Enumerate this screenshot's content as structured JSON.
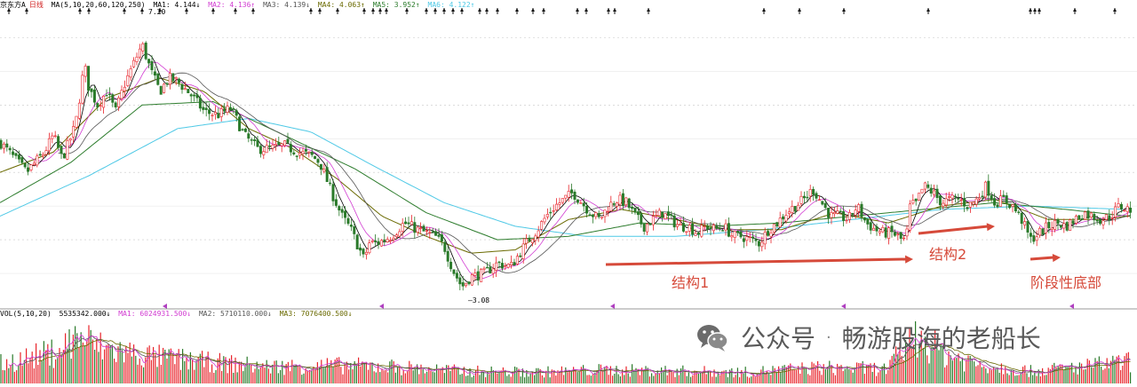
{
  "header": {
    "stock_name": "京东方A",
    "period": "日线",
    "ma_label": "MA(5,10,20,60,120,250)",
    "ma_items": [
      {
        "text": "MA1: 4.144↓",
        "color": "#000000"
      },
      {
        "text": "MA2: 4.136↑",
        "color": "#d23cd2"
      },
      {
        "text": "MA3: 4.139↓",
        "color": "#555555"
      },
      {
        "text": "MA4: 4.063↑",
        "color": "#6a6a00"
      },
      {
        "text": "MA5: 3.952↑",
        "color": "#2e7d2e"
      },
      {
        "text": "MA6: 4.122↑",
        "color": "#4fc9e6"
      }
    ]
  },
  "volume_header": {
    "label": "VOL(5,10,20)",
    "items": [
      {
        "text": "5535342.000↓",
        "color": "#000000"
      },
      {
        "text": "MA1: 6024931.500↓",
        "color": "#d23cd2"
      },
      {
        "text": "MA2: 5710110.000↓",
        "color": "#555555"
      },
      {
        "text": "MA3: 7076400.500↓",
        "color": "#6a6a00"
      }
    ]
  },
  "price_labels": {
    "high": "7.20",
    "low": "3.08"
  },
  "annotations": {
    "structure1": "结构1",
    "structure2": "结构2",
    "stage_bottom": "阶段性底部"
  },
  "watermark": {
    "channel": "公众号",
    "dot": "·",
    "author": "畅游股海的老船长"
  },
  "colors": {
    "up": "#e8232a",
    "down": "#2a7a2a",
    "ma5": "#000000",
    "ma10": "#d23cd2",
    "ma20": "#555555",
    "ma60": "#6a6a00",
    "ma120": "#2e7d2e",
    "ma250": "#4fc9e6",
    "annotation": "#d64a3a",
    "grid": "#c8c8c8"
  },
  "chart_data": {
    "type": "candlestick",
    "ylim": [
      3.0,
      7.4
    ],
    "series_outline": [
      {
        "name": "close",
        "x": [
          0,
          20,
          30,
          50,
          60,
          70,
          85,
          95,
          100,
          110,
          120,
          130,
          140,
          150,
          160,
          170,
          180,
          190,
          200,
          215,
          230,
          245,
          260,
          275,
          290,
          305,
          320,
          335,
          350,
          360,
          375,
          385,
          395,
          405,
          410,
          415,
          425,
          440,
          455,
          470,
          490,
          500,
          510,
          520,
          530,
          545,
          560,
          575,
          585,
          595,
          605,
          615,
          625,
          635,
          645,
          655,
          665,
          675,
          685,
          695,
          705,
          715,
          725,
          735,
          745,
          755,
          765,
          775,
          785,
          795,
          805,
          815,
          825,
          835,
          845,
          855,
          865,
          875,
          885,
          895,
          905,
          915,
          925,
          935,
          945,
          955,
          965,
          975,
          985,
          995,
          1005,
          1015,
          1020,
          1025,
          1030,
          1040,
          1050,
          1060,
          1070,
          1080,
          1090,
          1100,
          1110,
          1120,
          1130,
          1140,
          1150,
          1155,
          1160,
          1170,
          1180,
          1190,
          1200,
          1210,
          1220,
          1230,
          1240,
          1250,
          1260,
          1270
        ],
        "y": [
          5.45,
          5.15,
          5.0,
          5.3,
          5.55,
          5.2,
          5.7,
          6.6,
          6.25,
          6.0,
          6.2,
          5.9,
          6.3,
          6.6,
          6.9,
          6.5,
          6.2,
          6.4,
          6.35,
          6.15,
          5.9,
          5.85,
          5.95,
          5.55,
          5.35,
          5.35,
          5.4,
          5.3,
          5.25,
          5.15,
          4.65,
          4.35,
          4.15,
          3.85,
          3.7,
          3.95,
          3.95,
          4.05,
          4.25,
          4.15,
          4.05,
          3.9,
          3.55,
          3.3,
          3.45,
          3.5,
          3.65,
          3.6,
          3.8,
          4.0,
          4.15,
          4.35,
          4.5,
          4.6,
          4.7,
          4.55,
          4.4,
          4.3,
          4.5,
          4.6,
          4.55,
          4.35,
          4.2,
          4.3,
          4.4,
          4.3,
          4.2,
          4.2,
          4.1,
          4.2,
          4.15,
          4.2,
          4.05,
          4.05,
          4.0,
          3.95,
          4.15,
          4.25,
          4.4,
          4.5,
          4.6,
          4.75,
          4.55,
          4.35,
          4.35,
          4.3,
          4.5,
          4.25,
          4.15,
          4.1,
          4.1,
          4.0,
          4.0,
          4.55,
          4.5,
          4.8,
          4.7,
          4.55,
          4.6,
          4.6,
          4.5,
          4.6,
          4.8,
          4.55,
          4.6,
          4.5,
          4.3,
          4.15,
          4.0,
          4.1,
          4.2,
          4.25,
          4.2,
          4.3,
          4.4,
          4.35,
          4.3,
          4.35,
          4.5,
          4.45
        ]
      },
      {
        "name": "ma250",
        "x": [
          0,
          100,
          200,
          280,
          350,
          420,
          500,
          580,
          660,
          760,
          860,
          960,
          1060,
          1160,
          1270
        ],
        "y": [
          4.35,
          4.95,
          5.65,
          5.8,
          5.6,
          5.1,
          4.55,
          4.2,
          4.05,
          4.05,
          4.15,
          4.3,
          4.45,
          4.5,
          4.45
        ]
      },
      {
        "name": "ma120",
        "x": [
          0,
          80,
          160,
          240,
          320,
          400,
          480,
          560,
          640,
          720,
          800,
          880,
          960,
          1040,
          1120,
          1200,
          1270
        ],
        "y": [
          4.55,
          5.15,
          6.0,
          6.05,
          5.55,
          5.05,
          4.4,
          4.0,
          4.05,
          4.25,
          4.2,
          4.25,
          4.35,
          4.45,
          4.55,
          4.45,
          4.35
        ]
      },
      {
        "name": "ma60",
        "x": [
          0,
          60,
          120,
          180,
          230,
          280,
          330,
          380,
          430,
          480,
          530,
          580,
          640,
          700,
          760,
          820,
          880,
          940,
          1000,
          1060,
          1120,
          1180,
          1240,
          1270
        ],
        "y": [
          5.0,
          5.3,
          6.1,
          6.4,
          6.2,
          5.65,
          5.35,
          4.9,
          4.35,
          4.05,
          3.8,
          3.85,
          4.3,
          4.45,
          4.3,
          4.15,
          4.15,
          4.4,
          4.25,
          4.5,
          4.6,
          4.3,
          4.3,
          4.35
        ]
      }
    ],
    "volume_ylim": [
      0,
      1
    ],
    "volume_profile": [
      {
        "x": [
          0,
          60,
          90,
          110,
          160,
          220,
          300,
          380,
          440,
          520,
          600,
          680,
          760,
          840,
          920,
          1000,
          1030,
          1060,
          1100,
          1160,
          1220,
          1270
        ],
        "v": [
          0.35,
          0.55,
          0.85,
          0.65,
          0.5,
          0.4,
          0.3,
          0.32,
          0.3,
          0.22,
          0.2,
          0.24,
          0.22,
          0.2,
          0.28,
          0.26,
          0.9,
          0.55,
          0.35,
          0.22,
          0.3,
          0.38
        ]
      }
    ]
  }
}
